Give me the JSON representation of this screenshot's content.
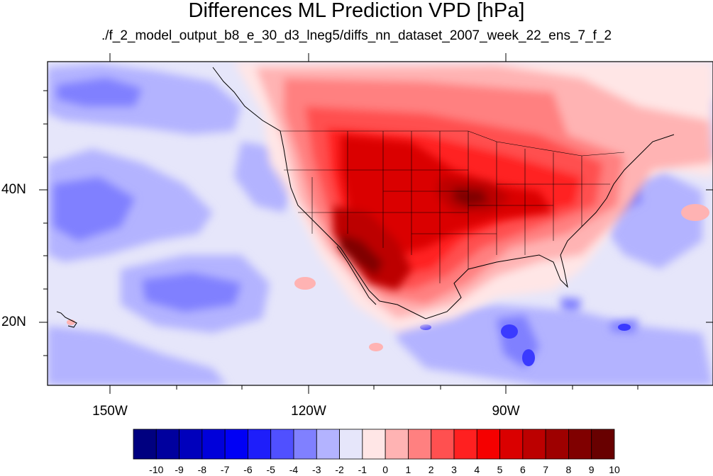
{
  "title": "Differences ML Prediction VPD [hPa]",
  "subtitle": "./f_2_model_output_b8_e_30_d3_lneg5/diffs_nn_dataset_2007_week_22_ens_7_f_2",
  "lat_labels": [
    "40N",
    "20N"
  ],
  "lon_labels": [
    "150W",
    "120W",
    "90W"
  ],
  "colorbar": {
    "labels": [
      "-10",
      "-9",
      "-8",
      "-7",
      "-6",
      "-5",
      "-4",
      "-3",
      "-2",
      "-1",
      "0",
      "1",
      "2",
      "3",
      "4",
      "5",
      "6",
      "7",
      "8",
      "9",
      "10"
    ],
    "colors": [
      "#000080",
      "#00009e",
      "#0000bc",
      "#0000da",
      "#0000f5",
      "#1e1efa",
      "#5050ff",
      "#8080ff",
      "#b3b3ff",
      "#e6e6fa",
      "#ffe6e6",
      "#ffb3b3",
      "#ff8080",
      "#ff5050",
      "#ff2020",
      "#f50000",
      "#da0000",
      "#bc0000",
      "#9e0000",
      "#800000",
      "#680000"
    ]
  }
}
